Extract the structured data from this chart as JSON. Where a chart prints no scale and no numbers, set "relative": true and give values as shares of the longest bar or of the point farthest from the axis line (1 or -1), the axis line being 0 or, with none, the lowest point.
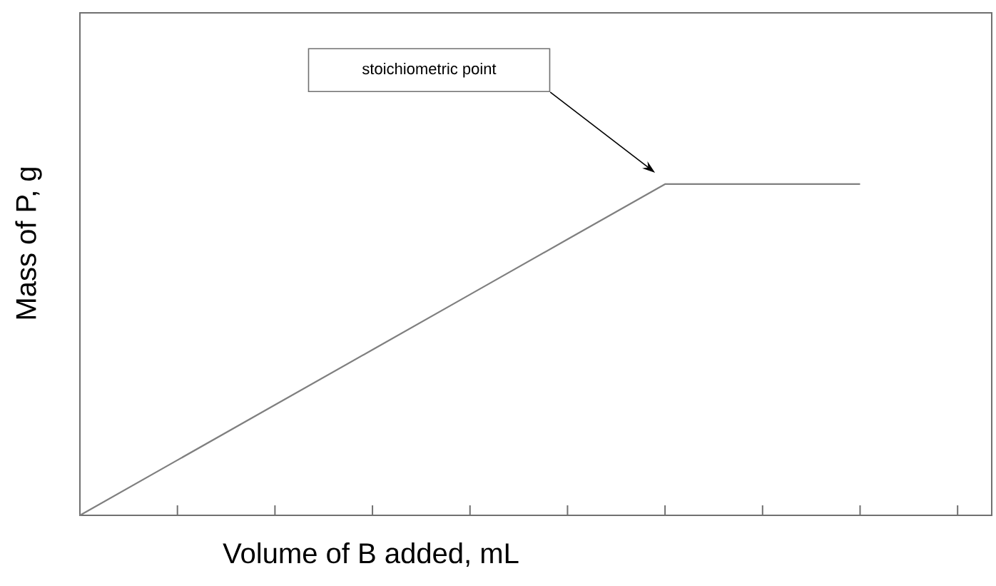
{
  "chart_data": {
    "type": "line",
    "relative": true,
    "xlabel": "Volume of B added, mL",
    "ylabel": "Mass of P, g",
    "categories": [
      null,
      null,
      null,
      null,
      null,
      null,
      null,
      null,
      null,
      null
    ],
    "series": [
      {
        "color": "#7f7f7f",
        "values": [
          0,
          0.1667,
          0.3333,
          0.5,
          0.6667,
          0.8333,
          1,
          1,
          1,
          null
        ]
      }
    ],
    "annotations": [
      "stoichiometric point"
    ],
    "marker": "none",
    "line_style": "solid",
    "grid": false
  }
}
